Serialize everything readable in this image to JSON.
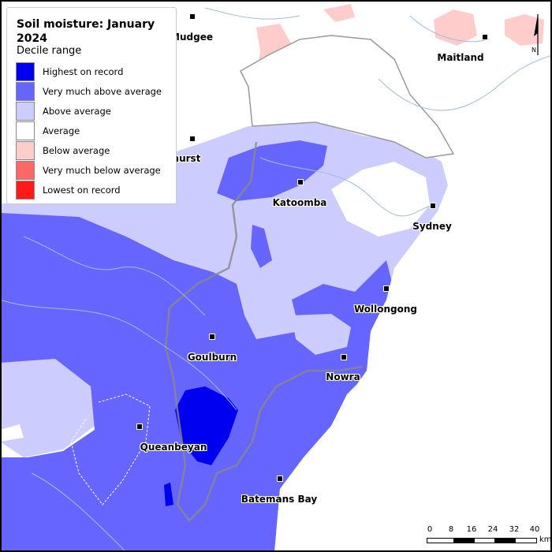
{
  "legend": {
    "title": "Soil moisture: January 2024",
    "subtitle": "Decile range",
    "items": [
      {
        "label": "Highest on record",
        "color": "#0000f0"
      },
      {
        "label": "Very much above average",
        "color": "#6666ff"
      },
      {
        "label": "Above average",
        "color": "#ccccff"
      },
      {
        "label": "Average",
        "color": "#ffffff"
      },
      {
        "label": "Below average",
        "color": "#ffcccc"
      },
      {
        "label": "Very much below average",
        "color": "#ff6666"
      },
      {
        "label": "Lowest on record",
        "color": "#ff1a1a"
      }
    ]
  },
  "towns": [
    {
      "name": "Mudgee"
    },
    {
      "name": "Bathurst"
    },
    {
      "name": "Katoomba"
    },
    {
      "name": "Sydney"
    },
    {
      "name": "Maitland"
    },
    {
      "name": "Wollongong"
    },
    {
      "name": "Goulburn"
    },
    {
      "name": "Nowra"
    },
    {
      "name": "Queanbeyan"
    },
    {
      "name": "Batemans Bay"
    }
  ],
  "scale_bar": {
    "ticks": [
      "0",
      "8",
      "16",
      "24",
      "32",
      "40"
    ],
    "unit": "km"
  },
  "north_arrow": {
    "label": "N"
  }
}
